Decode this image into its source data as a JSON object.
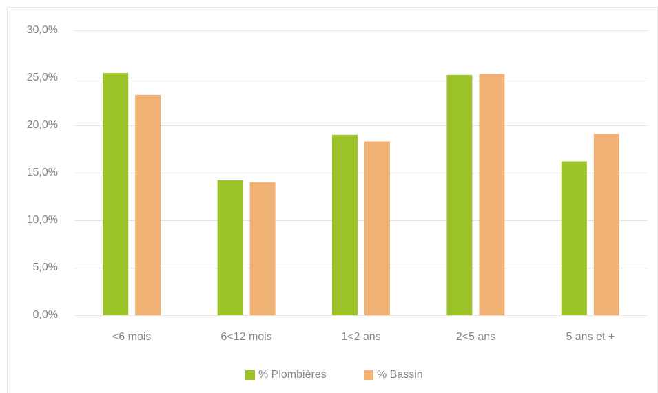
{
  "chart_data": {
    "type": "bar",
    "categories": [
      "<6 mois",
      "6<12 mois",
      "1<2 ans",
      "2<5 ans",
      "5 ans et +"
    ],
    "series": [
      {
        "name": "% Plombières",
        "color": "#9dc32a",
        "values": [
          25.5,
          14.2,
          19.0,
          25.3,
          16.2
        ]
      },
      {
        "name": "% Bassin",
        "color": "#f0b274",
        "values": [
          23.2,
          14.0,
          18.3,
          25.4,
          19.1
        ]
      }
    ],
    "ylim": [
      0,
      30
    ],
    "yticks": [
      {
        "value": 0,
        "label": "0,0%"
      },
      {
        "value": 5,
        "label": "5,0%"
      },
      {
        "value": 10,
        "label": "10,0%"
      },
      {
        "value": 15,
        "label": "15,0%"
      },
      {
        "value": 20,
        "label": "20,0%"
      },
      {
        "value": 25,
        "label": "25,0%"
      },
      {
        "value": 30,
        "label": "30,0%"
      }
    ],
    "grid": true,
    "legend": "bottom"
  }
}
